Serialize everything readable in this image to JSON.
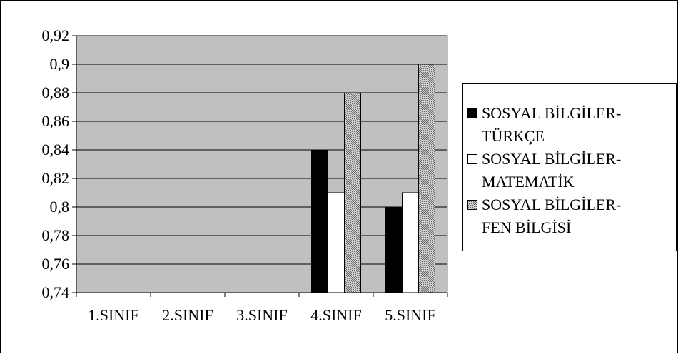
{
  "chart_data": {
    "type": "bar",
    "categories": [
      "1.SINIF",
      "2.SINIF",
      "3.SINIF",
      "4.SINIF",
      "5.SINIF"
    ],
    "series": [
      {
        "name": "SOSYAL BİLGİLER-TÜRKÇE",
        "values": [
          null,
          null,
          null,
          0.84,
          0.8
        ],
        "color": "#000000",
        "pattern": "solid"
      },
      {
        "name": "SOSYAL BİLGİLER-MATEMATİK",
        "values": [
          null,
          null,
          null,
          0.81,
          0.81
        ],
        "color": "#ffffff",
        "pattern": "solid"
      },
      {
        "name": "SOSYAL BİLGİLER-FEN BİLGİSİ",
        "values": [
          null,
          null,
          null,
          0.88,
          0.9
        ],
        "color": "#a0a0a0",
        "pattern": "hatched"
      }
    ],
    "ylim": [
      0.74,
      0.92
    ],
    "yticks": [
      "0,74",
      "0,76",
      "0,78",
      "0,8",
      "0,82",
      "0,84",
      "0,86",
      "0,88",
      "0,9",
      "0,92"
    ],
    "grid": true,
    "legend": "right",
    "plot_background": "#c0c0c0",
    "title": "",
    "xlabel": "",
    "ylabel": ""
  },
  "legend": {
    "items": [
      {
        "line1": "SOSYAL BİLGİLER-",
        "line2": "TÜRKÇE",
        "swatch": "solid-black"
      },
      {
        "line1": "SOSYAL BİLGİLER-",
        "line2": "MATEMATİK",
        "swatch": "solid-white"
      },
      {
        "line1": "SOSYAL BİLGİLER-",
        "line2": "FEN BİLGİSİ",
        "swatch": "hatched"
      }
    ]
  }
}
